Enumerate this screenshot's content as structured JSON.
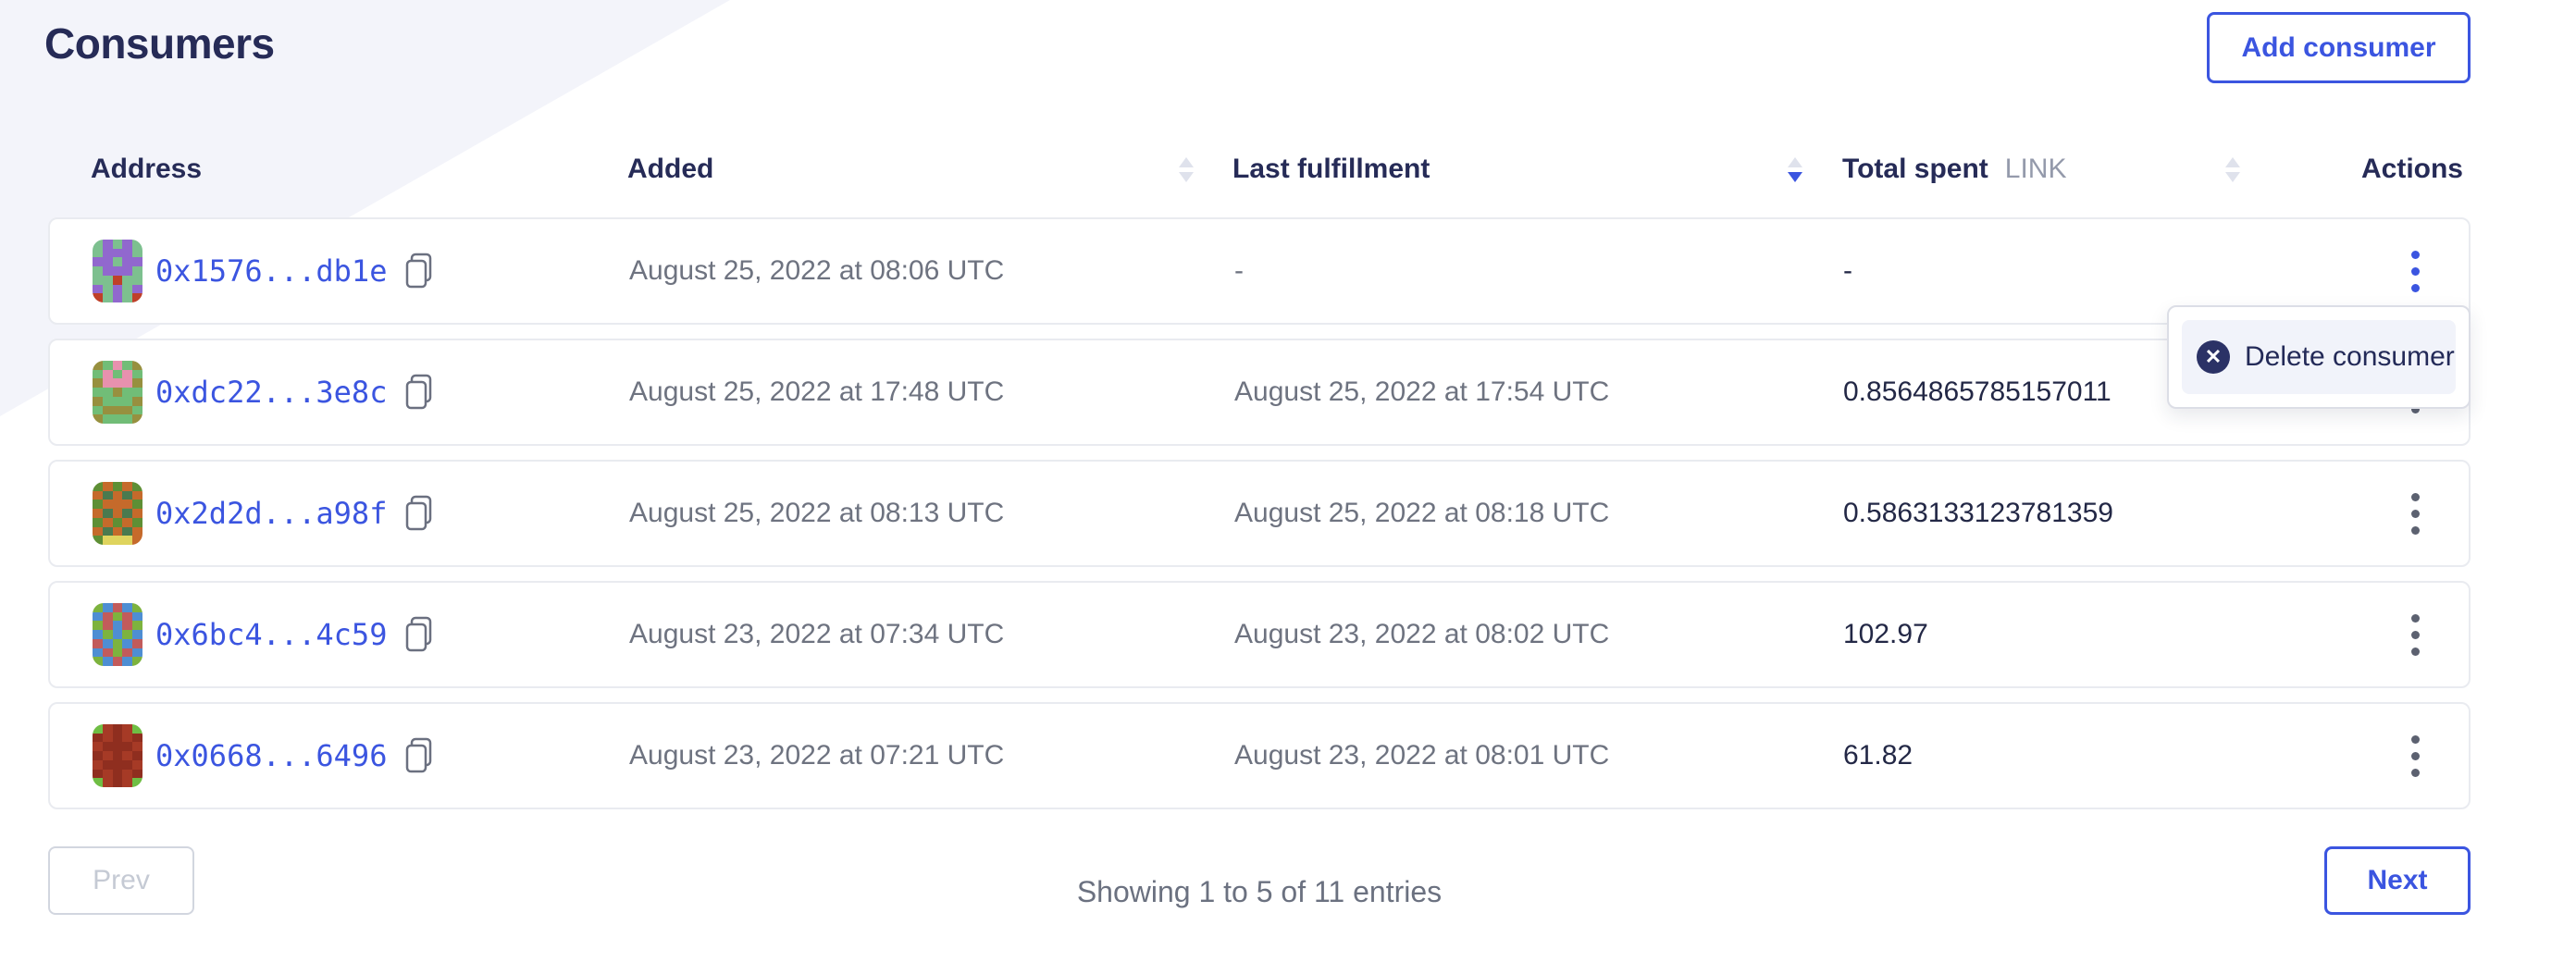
{
  "page": {
    "title": "Consumers"
  },
  "header": {
    "add_button_label": "Add consumer"
  },
  "table": {
    "columns": [
      {
        "label": "Address",
        "sortable": false,
        "sort": "none"
      },
      {
        "label": "Added",
        "sortable": true,
        "sort": "none"
      },
      {
        "label": "Last fulfillment",
        "sortable": true,
        "sort": "desc"
      },
      {
        "label": "Total spent",
        "unit": "LINK",
        "sortable": true,
        "sort": "none"
      },
      {
        "label": "Actions",
        "sortable": false,
        "sort": "none"
      }
    ],
    "rows": [
      {
        "address": "0x1576...db1e",
        "added": "August 25, 2022 at 08:06 UTC",
        "last_fulfillment": "-",
        "total_spent": "-",
        "menu_open": true,
        "avatar": {
          "palette": {
            "G": "#7dc08f",
            "P": "#9168ce",
            "R": "#bf4029"
          },
          "rows": [
            "GPGPG",
            "GPPPG",
            "PPGPP",
            "GPPPG",
            "GGRGG",
            "PGPGP",
            "RGPGR"
          ]
        }
      },
      {
        "address": "0xdc22...3e8c",
        "added": "August 25, 2022 at 17:48 UTC",
        "last_fulfillment": "August 25, 2022 at 17:54 UTC",
        "total_spent": "0.8564865785157011",
        "menu_open": false,
        "avatar": {
          "palette": {
            "G": "#71bd77",
            "O": "#97903f",
            "K": "#e791ae"
          },
          "rows": [
            "OGKGO",
            "GKGKG",
            "OKKKO",
            "GGOGG",
            "OGGGO",
            "GOOOG",
            "OGGGO"
          ]
        }
      },
      {
        "address": "0x2d2d...a98f",
        "added": "August 25, 2022 at 08:13 UTC",
        "last_fulfillment": "August 25, 2022 at 08:18 UTC",
        "total_spent": "0.5863133123781359",
        "menu_open": false,
        "avatar": {
          "palette": {
            "N": "#5e8f35",
            "C": "#c56a2b",
            "D": "#4a7a4f",
            "Y": "#dfd45e"
          },
          "rows": [
            "NCNCN",
            "CDCDC",
            "NCCCN",
            "CDCDC",
            "NCNCN",
            "CDCDC",
            "NYYYC"
          ]
        }
      },
      {
        "address": "0x6bc4...4c59",
        "added": "August 23, 2022 at 07:34 UTC",
        "last_fulfillment": "August 23, 2022 at 08:02 UTC",
        "total_spent": "102.97",
        "menu_open": false,
        "avatar": {
          "palette": {
            "B": "#4e8ed3",
            "E": "#7db33e",
            "R": "#c25b5b"
          },
          "rows": [
            "EBRBE",
            "BRERB",
            "ERBRE",
            "BEBEB",
            "RBEBR",
            "BRERB",
            "EBRBE"
          ]
        }
      },
      {
        "address": "0x0668...6496",
        "added": "August 23, 2022 at 07:21 UTC",
        "last_fulfillment": "August 23, 2022 at 08:01 UTC",
        "total_spent": "61.82",
        "menu_open": false,
        "avatar": {
          "palette": {
            "M": "#8f2e1f",
            "A": "#a63a26",
            "E": "#6fbe44"
          },
          "rows": [
            "EAMAE",
            "MAMAM",
            "AMMMA",
            "MAMAM",
            "AMMMA",
            "MAMAM",
            "EAMAE"
          ]
        }
      }
    ]
  },
  "context_menu": {
    "items": [
      {
        "label": "Delete consumer",
        "icon": "x-circle-icon"
      }
    ]
  },
  "pagination": {
    "prev_label": "Prev",
    "next_label": "Next",
    "summary": "Showing 1 to 5 of 11 entries"
  },
  "colors": {
    "accent_blue": "#3b55e0",
    "heading_navy": "#262b57",
    "muted_text": "#6e7380",
    "band_lavender": "#f3f4fa",
    "menu_icon_navy": "#2b3266"
  }
}
